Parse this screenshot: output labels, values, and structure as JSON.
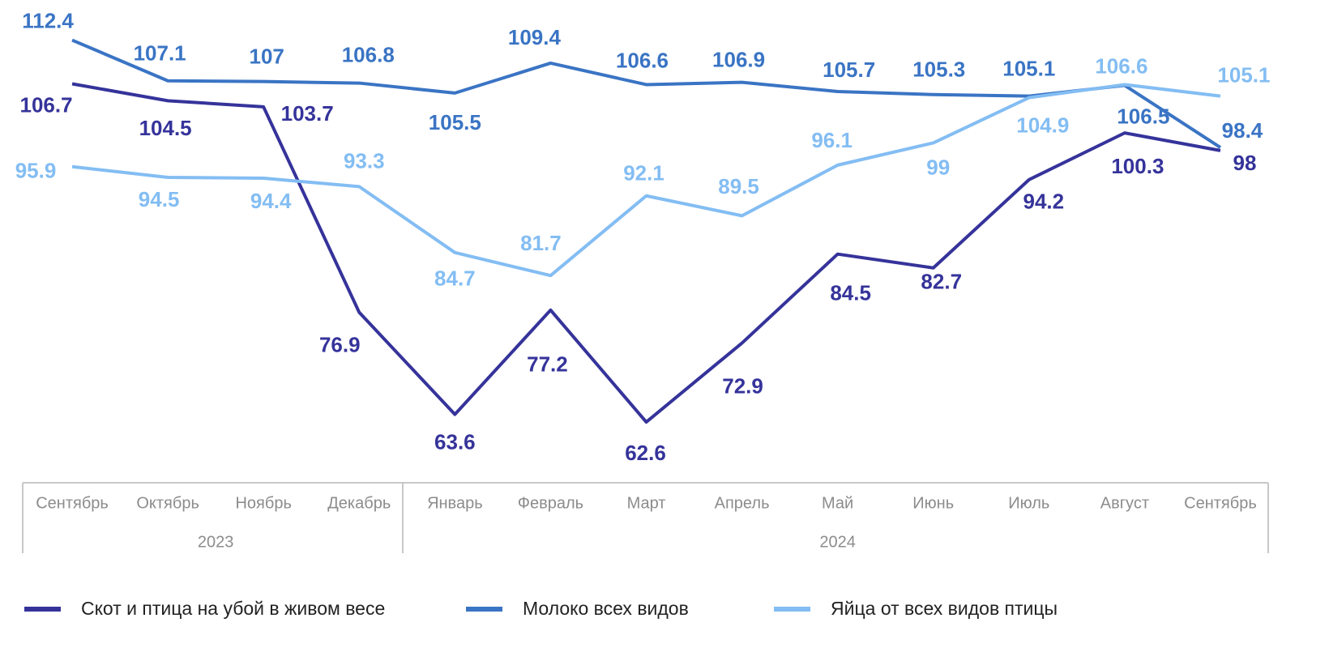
{
  "chart_data": {
    "type": "line",
    "categories": [
      "Сентябрь",
      "Октябрь",
      "Ноябрь",
      "Декабрь",
      "Январь",
      "Февраль",
      "Март",
      "Апрель",
      "Май",
      "Июнь",
      "Июль",
      "Август",
      "Сентябрь"
    ],
    "years": [
      "2023",
      "2023",
      "2023",
      "2023",
      "2024",
      "2024",
      "2024",
      "2024",
      "2024",
      "2024",
      "2024",
      "2024",
      "2024"
    ],
    "series": [
      {
        "name": "Скот и птица на убой в живом весе",
        "color": "#35339a",
        "values": [
          106.7,
          104.5,
          103.7,
          76.9,
          63.6,
          77.2,
          62.6,
          72.9,
          84.5,
          82.7,
          94.2,
          100.3,
          98.0
        ]
      },
      {
        "name": "Молоко всех видов",
        "color": "#3a74c4",
        "values": [
          112.4,
          107.1,
          107.0,
          106.8,
          105.5,
          109.4,
          106.6,
          106.9,
          105.7,
          105.3,
          105.1,
          106.5,
          98.4
        ]
      },
      {
        "name": "Яйца от всех видов птицы",
        "color": "#83bdf3",
        "values": [
          95.9,
          94.5,
          94.4,
          93.3,
          84.7,
          81.7,
          92.1,
          89.5,
          96.1,
          99.0,
          104.9,
          106.6,
          105.1
        ]
      }
    ],
    "ylim": [
      55,
      117
    ],
    "legend": "bottom"
  }
}
